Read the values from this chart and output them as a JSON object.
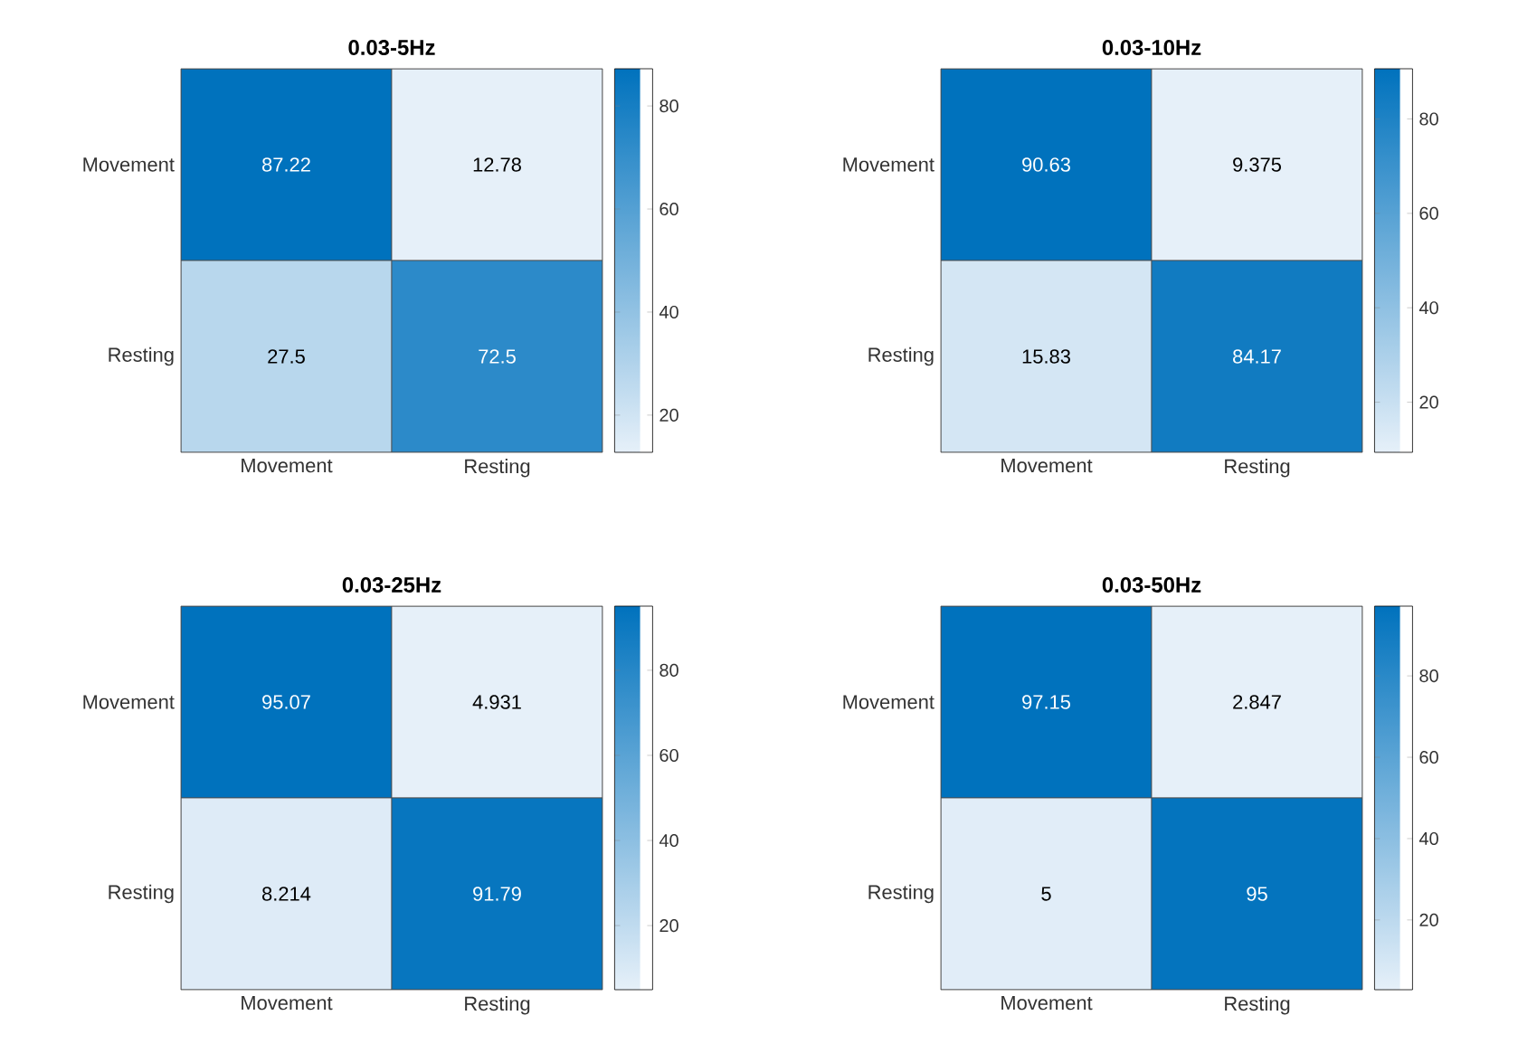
{
  "chart_data": [
    {
      "type": "heatmap",
      "title": "0.03-5Hz",
      "categories": [
        "Movement",
        "Resting"
      ],
      "y_categories": [
        "Movement",
        "Resting"
      ],
      "cells": [
        [
          87.22,
          12.78
        ],
        [
          27.5,
          72.5
        ]
      ],
      "data_labels": true,
      "clim": [
        12.78,
        87.22
      ],
      "cticks": [
        20,
        40,
        60,
        80
      ]
    },
    {
      "type": "heatmap",
      "title": "0.03-10Hz",
      "categories": [
        "Movement",
        "Resting"
      ],
      "y_categories": [
        "Movement",
        "Resting"
      ],
      "cells": [
        [
          90.63,
          9.375
        ],
        [
          15.83,
          84.17
        ]
      ],
      "data_labels": true,
      "clim": [
        9.375,
        90.63
      ],
      "cticks": [
        20,
        40,
        60,
        80
      ]
    },
    {
      "type": "heatmap",
      "title": "0.03-25Hz",
      "categories": [
        "Movement",
        "Resting"
      ],
      "y_categories": [
        "Movement",
        "Resting"
      ],
      "cells": [
        [
          95.07,
          4.931
        ],
        [
          8.214,
          91.79
        ]
      ],
      "data_labels": true,
      "clim": [
        4.931,
        95.07
      ],
      "cticks": [
        20,
        40,
        60,
        80
      ]
    },
    {
      "type": "heatmap",
      "title": "0.03-50Hz",
      "categories": [
        "Movement",
        "Resting"
      ],
      "y_categories": [
        "Movement",
        "Resting"
      ],
      "cells": [
        [
          97.15,
          2.847
        ],
        [
          5,
          95
        ]
      ],
      "data_labels": true,
      "clim": [
        2.847,
        97.15
      ],
      "cticks": [
        20,
        40,
        60,
        80
      ]
    }
  ]
}
